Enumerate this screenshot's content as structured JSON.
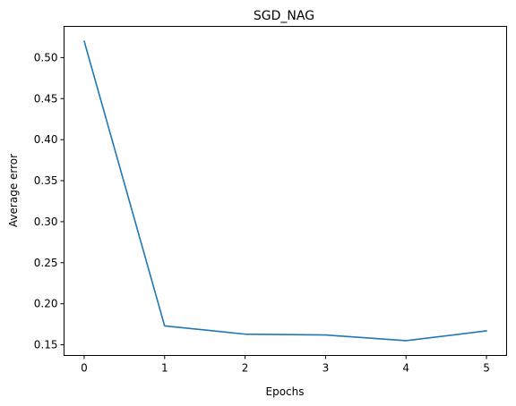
{
  "chart_data": {
    "type": "line",
    "title": "SGD_NAG",
    "xlabel": "Epochs",
    "ylabel": "Average error",
    "x": [
      0,
      1,
      2,
      3,
      4,
      5
    ],
    "series": [
      {
        "values": [
          0.52,
          0.173,
          0.163,
          0.162,
          0.155,
          0.167
        ],
        "color": "#1f77b4"
      }
    ],
    "xlim": [
      -0.25,
      5.25
    ],
    "ylim": [
      0.137,
      0.538
    ],
    "xticks": [
      0,
      1,
      2,
      3,
      4,
      5
    ],
    "xtick_labels": [
      "0",
      "1",
      "2",
      "3",
      "4",
      "5"
    ],
    "yticks": [
      0.15,
      0.2,
      0.25,
      0.3,
      0.35,
      0.4,
      0.45,
      0.5
    ],
    "ytick_labels": [
      "0.15",
      "0.20",
      "0.25",
      "0.30",
      "0.35",
      "0.40",
      "0.45",
      "0.50"
    ],
    "grid": false,
    "legend": "none"
  }
}
